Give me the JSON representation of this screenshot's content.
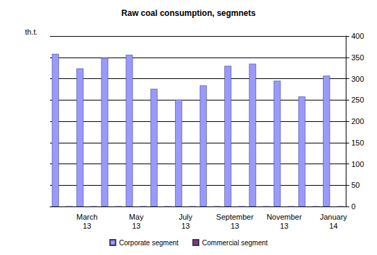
{
  "chart_data": {
    "type": "bar",
    "title": "Raw coal consumption, segmnets",
    "ylabel": "th.t.",
    "categories": [
      null,
      "March\n13",
      null,
      "May\n13",
      null,
      "July\n13",
      null,
      "September\n13",
      null,
      "November\n13",
      null,
      "January\n14"
    ],
    "series": [
      {
        "name": "Corporate segment",
        "color": "#9999ff",
        "values": [
          358,
          324,
          349,
          356,
          276,
          251,
          284,
          330,
          335,
          295,
          258,
          307
        ]
      },
      {
        "name": "Commercial segment",
        "color": "#993366",
        "values": [
          0,
          0,
          0,
          0,
          0,
          0,
          0,
          0,
          0,
          0,
          0,
          0
        ]
      }
    ],
    "ylim": [
      0,
      400
    ],
    "yticks": [
      0,
      50,
      100,
      150,
      200,
      250,
      300,
      350,
      400
    ],
    "grid": true,
    "legend": "bottom"
  }
}
